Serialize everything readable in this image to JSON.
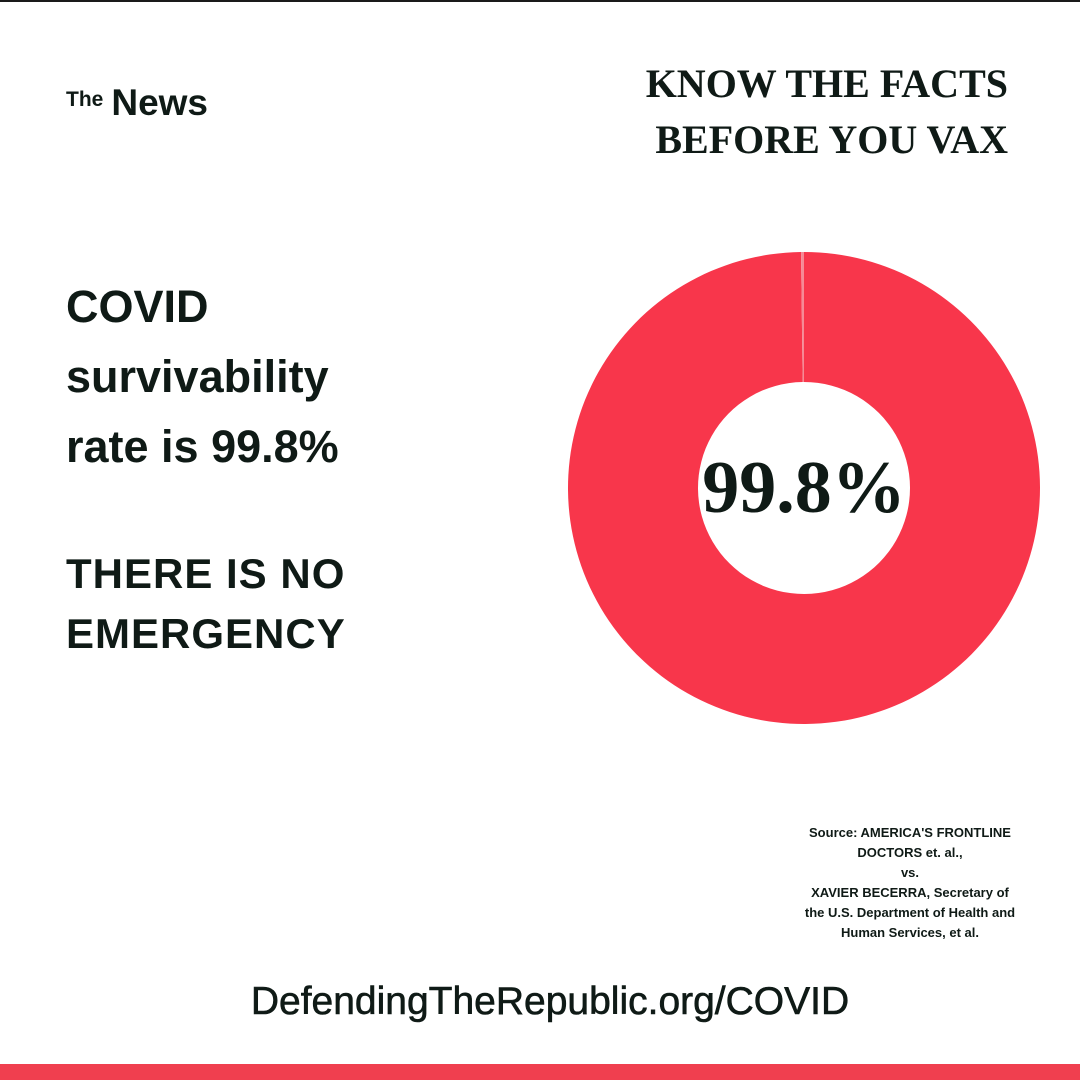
{
  "brand": {
    "prefix": "The",
    "name": "News"
  },
  "headline": {
    "line1": "KNOW THE FACTS",
    "line2": "BEFORE YOU VAX"
  },
  "claim": {
    "line1": "COVID",
    "line2": "survivability",
    "line3": "rate is 99.8%"
  },
  "emergency": {
    "line1": "THERE IS NO",
    "line2": "EMERGENCY"
  },
  "chart_data": {
    "type": "pie",
    "donut": true,
    "center_label": "99.8%",
    "slices": [
      {
        "value": 99.8,
        "color": "#f8364b"
      },
      {
        "value": 0.2,
        "color": "#f58a96"
      }
    ]
  },
  "source": {
    "line1": "Source: AMERICA'S FRONTLINE",
    "line2": "DOCTORS et. al.,",
    "line3": "vs.",
    "line4": "XAVIER BECERRA, Secretary of",
    "line5": "the U.S. Department of Health and",
    "line6": "Human Services, et al."
  },
  "footer": {
    "url": "DefendingTheRepublic.org/COVID"
  },
  "colors": {
    "accent": "#f03f4f",
    "text": "#0f1a16"
  }
}
